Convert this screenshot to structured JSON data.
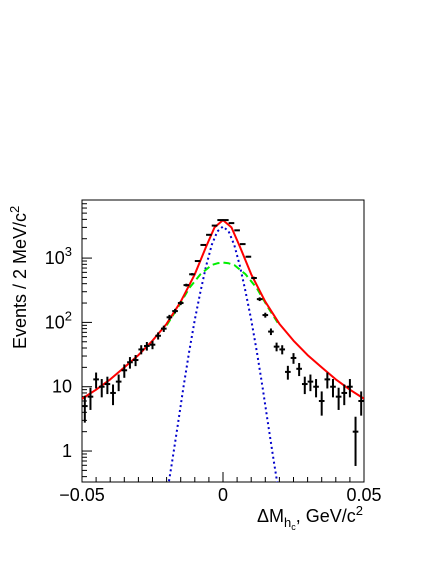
{
  "chart_data": {
    "type": "scatter",
    "xlabel_main": "ΔM",
    "xlabel_sub_h": "h",
    "xlabel_sub_c": "c",
    "xlabel_unit": ", GeV/c",
    "xlabel_exp": "2",
    "ylabel": "Events / 2 MeV/c",
    "ylabel_exp": "2",
    "xlim": [
      -0.05,
      0.05
    ],
    "ylim": [
      0.33,
      8000
    ],
    "y_scale": "log",
    "x_ticks": [
      {
        "value": -0.05,
        "label": "−0.05"
      },
      {
        "value": 0,
        "label": "0"
      },
      {
        "value": 0.05,
        "label": "0.05"
      }
    ],
    "y_ticks": [
      {
        "value": 1,
        "base": "1",
        "exp": ""
      },
      {
        "value": 10,
        "base": "10",
        "exp": ""
      },
      {
        "value": 100,
        "base": "10",
        "exp": "2"
      },
      {
        "value": 1000,
        "base": "10",
        "exp": "3"
      }
    ],
    "colors": {
      "data": "#000000",
      "total_fit": "#ff0000",
      "signal_narrow": "#0000cc",
      "signal_wide": "#00ee00"
    },
    "series": [
      {
        "style": "points-with-errors",
        "x": [
          -0.049,
          -0.047,
          -0.045,
          -0.043,
          -0.041,
          -0.039,
          -0.037,
          -0.035,
          -0.033,
          -0.031,
          -0.029,
          -0.027,
          -0.025,
          -0.023,
          -0.021,
          -0.019,
          -0.017,
          -0.015,
          -0.013,
          -0.011,
          -0.009,
          -0.007,
          -0.005,
          -0.003,
          -0.001,
          0.001,
          0.003,
          0.005,
          0.007,
          0.009,
          0.011,
          0.013,
          0.015,
          0.017,
          0.019,
          0.021,
          0.023,
          0.025,
          0.027,
          0.029,
          0.031,
          0.033,
          0.035,
          0.037,
          0.039,
          0.041,
          0.043,
          0.045,
          0.047,
          0.049
        ],
        "y": [
          5,
          7,
          13,
          10,
          11,
          8,
          12,
          18,
          24,
          26,
          38,
          43,
          45,
          62,
          80,
          120,
          150,
          200,
          380,
          560,
          900,
          1600,
          2300,
          3200,
          3900,
          3900,
          3500,
          2700,
          1650,
          1050,
          490,
          230,
          130,
          72,
          42,
          38,
          17,
          28,
          19,
          11,
          12,
          10,
          6,
          13,
          10,
          7,
          8,
          10,
          2,
          6
        ]
      },
      {
        "style": "line",
        "component": "total fit",
        "x": [
          -0.05,
          -0.045,
          -0.04,
          -0.035,
          -0.03,
          -0.025,
          -0.02,
          -0.015,
          -0.01,
          -0.006,
          -0.003,
          0,
          0.003,
          0.006,
          0.01,
          0.015,
          0.02,
          0.025,
          0.03,
          0.035,
          0.04,
          0.045,
          0.05
        ],
        "y": [
          6.5,
          9,
          13,
          20,
          31,
          52,
          95,
          210,
          560,
          1500,
          3000,
          3900,
          3000,
          1500,
          560,
          210,
          95,
          52,
          31,
          20,
          13,
          9,
          6.5
        ]
      },
      {
        "style": "dotted",
        "component": "narrow signal",
        "x": [
          -0.02,
          -0.018,
          -0.016,
          -0.014,
          -0.012,
          -0.01,
          -0.008,
          -0.006,
          -0.004,
          -0.002,
          0,
          0.002,
          0.004,
          0.006,
          0.008,
          0.01,
          0.012,
          0.014,
          0.016,
          0.018,
          0.02
        ],
        "y": [
          0.2,
          0.7,
          2.6,
          10,
          35,
          110,
          300,
          750,
          1600,
          2600,
          3100,
          2600,
          1600,
          750,
          300,
          110,
          35,
          10,
          2.6,
          0.7,
          0.2
        ]
      },
      {
        "style": "dashed",
        "component": "wide signal",
        "x": [
          -0.02,
          -0.016,
          -0.012,
          -0.008,
          -0.004,
          -0.002,
          0,
          0.002,
          0.004,
          0.008,
          0.012,
          0.016,
          0.02
        ],
        "y": [
          90,
          170,
          340,
          560,
          780,
          830,
          850,
          830,
          780,
          560,
          340,
          170,
          90
        ]
      }
    ]
  }
}
